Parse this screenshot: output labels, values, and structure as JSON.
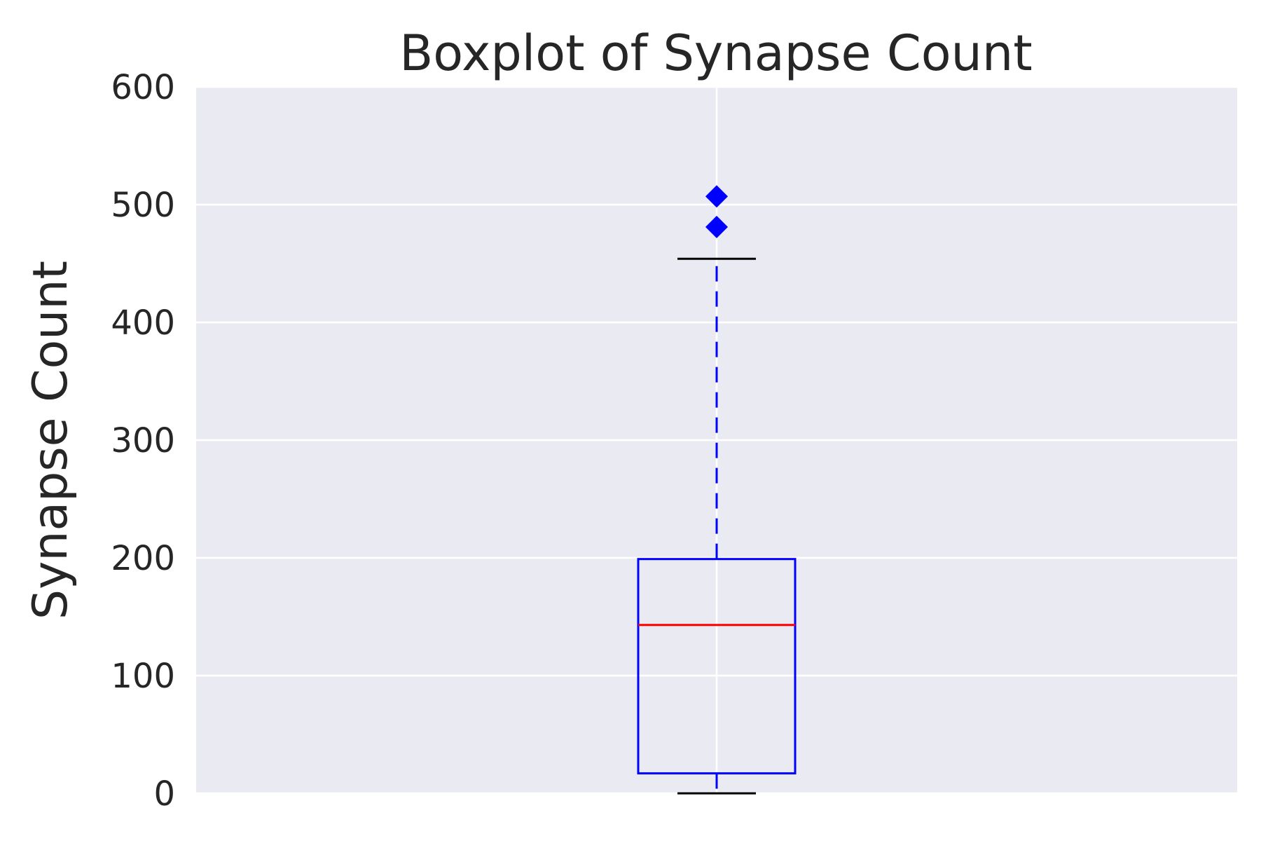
{
  "chart_data": {
    "type": "boxplot",
    "title": "Boxplot of Synapse Count",
    "xlabel": "",
    "ylabel": "Synapse Count",
    "ylim": [
      0,
      600
    ],
    "yticks": [
      0,
      100,
      200,
      300,
      400,
      500,
      600
    ],
    "ytick_labels": [
      "0",
      "100",
      "200",
      "300",
      "400",
      "500",
      "600"
    ],
    "grid": true,
    "series": [
      {
        "whisker_low": 0,
        "q1": 17,
        "median": 143,
        "q3": 199,
        "whisker_high": 454,
        "outliers": [
          481,
          507
        ]
      }
    ],
    "colors": {
      "background": "#EAEAF2",
      "grid": "#FFFFFF",
      "box": "#0000FF",
      "median": "#FF0000",
      "whisker": "#0000FF",
      "cap": "#000000",
      "outlier": "#0000FF",
      "text": "#262626"
    }
  }
}
